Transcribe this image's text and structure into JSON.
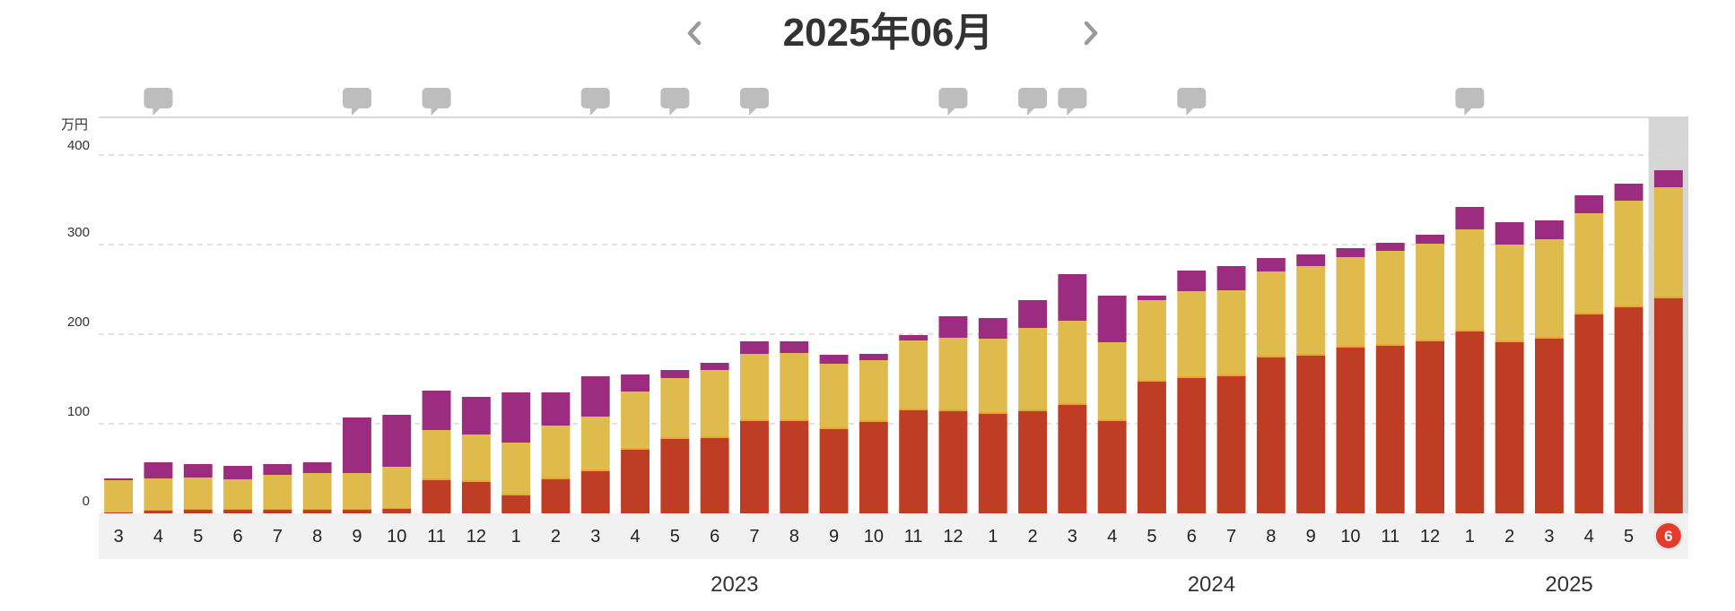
{
  "header": {
    "title": "2025年06月",
    "prev_icon": "chevron-left-icon",
    "next_icon": "chevron-right-icon"
  },
  "chart_data": {
    "type": "bar",
    "stacked": true,
    "y_unit": "万円",
    "ylim": [
      0,
      410
    ],
    "y_ticks": [
      0,
      100,
      200,
      300,
      400
    ],
    "grid": true,
    "legend": "none",
    "month_labels": [
      "3",
      "4",
      "5",
      "6",
      "7",
      "8",
      "9",
      "10",
      "11",
      "12",
      "1",
      "2",
      "3",
      "4",
      "5",
      "6",
      "7",
      "8",
      "9",
      "10",
      "11",
      "12",
      "1",
      "2",
      "3",
      "4",
      "5",
      "6",
      "7",
      "8",
      "9",
      "10",
      "11",
      "12",
      "1",
      "2",
      "3",
      "4",
      "5",
      "6"
    ],
    "years": [
      {
        "label": "2023",
        "start": 10,
        "end": 21
      },
      {
        "label": "2024",
        "start": 22,
        "end": 33
      },
      {
        "label": "2025",
        "start": 34,
        "end": 39
      }
    ],
    "series": [
      {
        "color": "#bf3c25",
        "values": [
          1,
          3,
          4,
          4,
          4,
          4,
          4,
          5,
          37,
          35,
          20,
          38,
          47,
          71,
          83,
          84,
          103,
          103,
          94,
          102,
          115,
          114,
          111,
          114,
          121,
          103,
          147,
          151,
          153,
          174,
          176,
          185,
          187,
          192,
          203,
          191,
          195,
          222,
          230,
          240
        ]
      },
      {
        "color": "#e0a93a",
        "values": [
          0,
          1,
          1,
          1,
          1,
          1,
          1,
          1,
          2,
          2,
          2,
          2,
          2,
          2,
          2,
          2,
          2,
          2,
          2,
          2,
          2,
          2,
          2,
          2,
          2,
          2,
          2,
          2,
          2,
          2,
          2,
          2,
          2,
          2,
          2,
          2,
          2,
          2,
          2,
          2
        ]
      },
      {
        "color": "#dfbb4e",
        "values": [
          36,
          35,
          35,
          33,
          38,
          40,
          40,
          46,
          54,
          51,
          57,
          58,
          59,
          63,
          66,
          74,
          73,
          74,
          71,
          67,
          76,
          80,
          82,
          91,
          92,
          86,
          89,
          95,
          94,
          94,
          98,
          99,
          104,
          107,
          112,
          107,
          109,
          111,
          117,
          122
        ]
      },
      {
        "color": "#9b2c7f",
        "values": [
          2,
          18,
          15,
          15,
          12,
          12,
          62,
          58,
          44,
          42,
          56,
          37,
          45,
          19,
          9,
          8,
          14,
          13,
          10,
          7,
          6,
          24,
          23,
          31,
          52,
          52,
          5,
          23,
          27,
          15,
          13,
          10,
          9,
          10,
          25,
          25,
          21,
          20,
          19,
          19
        ]
      }
    ],
    "note_markers": [
      1,
      6,
      8,
      12,
      14,
      16,
      21,
      23,
      24,
      27,
      34
    ],
    "selected_index": 39,
    "selected_badge": "6",
    "selected_badge_color": "#e53b2c"
  }
}
